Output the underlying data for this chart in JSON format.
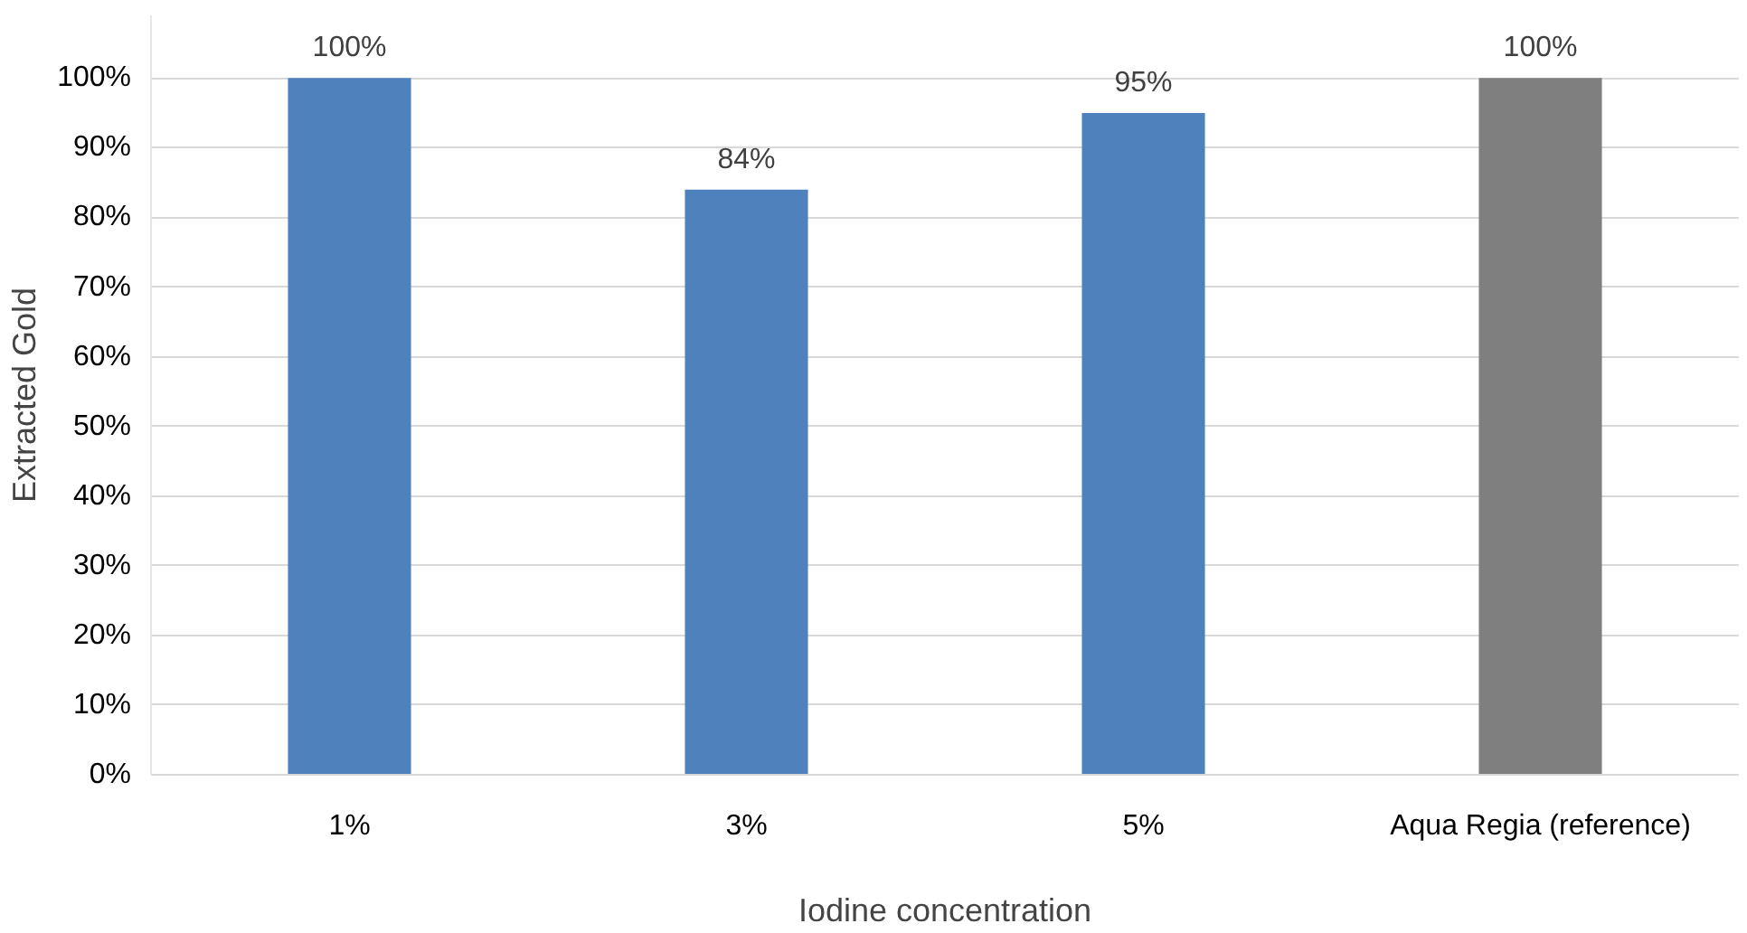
{
  "chart_data": {
    "type": "bar",
    "xlabel": "Iodine concentration",
    "ylabel": "Extracted Gold",
    "categories": [
      "1%",
      "3%",
      "5%",
      "Aqua Regia (reference)"
    ],
    "values": [
      100,
      84,
      95,
      100
    ],
    "colors": [
      "#4f81bd",
      "#4f81bd",
      "#4f81bd",
      "#7f7f7f"
    ],
    "value_labels": [
      "100%",
      "84%",
      "95%",
      "100%"
    ],
    "ylim": [
      0,
      109
    ],
    "yticks": [
      {
        "value": 0,
        "label": "0%"
      },
      {
        "value": 10,
        "label": "10%"
      },
      {
        "value": 20,
        "label": "20%"
      },
      {
        "value": 30,
        "label": "30%"
      },
      {
        "value": 40,
        "label": "40%"
      },
      {
        "value": 50,
        "label": "50%"
      },
      {
        "value": 60,
        "label": "60%"
      },
      {
        "value": 70,
        "label": "70%"
      },
      {
        "value": 80,
        "label": "80%"
      },
      {
        "value": 90,
        "label": "90%"
      },
      {
        "value": 100,
        "label": "100%"
      }
    ],
    "grid": "y"
  }
}
